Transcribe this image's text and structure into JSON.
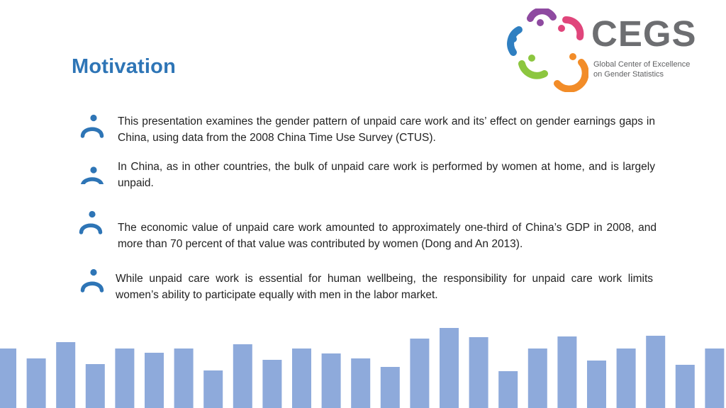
{
  "slide": {
    "title": "Motivation"
  },
  "logo": {
    "name": "CEGS",
    "subtitle": "Global Center of Excellence\non Gender Statistics",
    "colors": [
      "#2f7fc1",
      "#8e4aa0",
      "#e0457b",
      "#f28c28",
      "#8cc63f"
    ]
  },
  "bullets": [
    {
      "icon": "person-icon",
      "text": "This presentation examines the gender pattern of unpaid care work and its’ effect on gender earnings gaps in China, using data from the 2008 China Time Use Survey (CTUS)."
    },
    {
      "icon": "person-icon",
      "text": "In China, as in other countries, the bulk of unpaid care work is performed by women at home, and is largely unpaid."
    },
    {
      "icon": "person-icon",
      "text": "The economic value of unpaid care work amounted to approximately one-third of China’s GDP in 2008, and more than 70 percent of that value was contributed by women (Dong and An 2013)."
    },
    {
      "icon": "person-icon",
      "text": "While unpaid care work is essential for human wellbeing, the responsibility for unpaid care work limits women’s ability to participate equally with men in the labor market."
    }
  ],
  "decoration": {
    "bar_color": "#8eaadb",
    "icon_color": "#2e75b6",
    "bar_levels": [
      84,
      70,
      93,
      62,
      84,
      78,
      84,
      53,
      90,
      68,
      84,
      77,
      70,
      58,
      98,
      113,
      100,
      52,
      84,
      101,
      67,
      84,
      102,
      61,
      84
    ]
  }
}
